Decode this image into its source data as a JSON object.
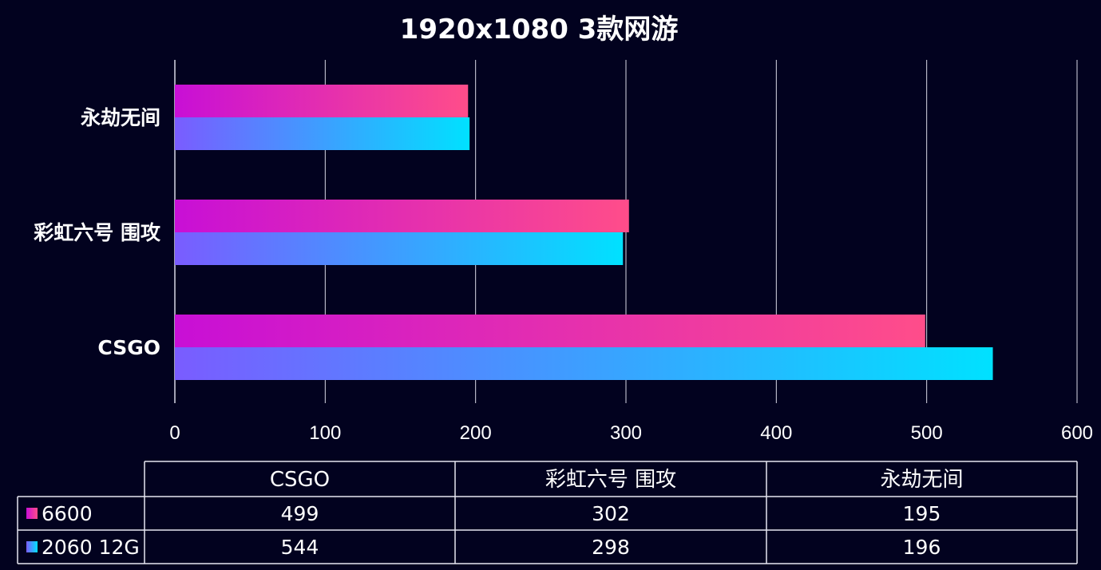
{
  "chart_data": {
    "type": "bar",
    "orientation": "horizontal",
    "title": "1920x1080  3款网游",
    "categories": [
      "CSGO",
      "彩虹六号 围攻",
      "永劫无间"
    ],
    "series": [
      {
        "name": "6600",
        "values": [
          499,
          302,
          195
        ]
      },
      {
        "name": "2060 12G",
        "values": [
          544,
          298,
          196
        ]
      }
    ],
    "xlim": [
      0,
      600
    ],
    "x_ticks": [
      0,
      100,
      200,
      300,
      400,
      500,
      600
    ],
    "grid": "vertical",
    "legend": "data-table-below"
  },
  "colors": {
    "background": "#02021f",
    "series_6600": [
      "#c80fd6",
      "#ff4d8a"
    ],
    "series_2060": [
      "#7a5cff",
      "#00e1ff"
    ],
    "grid": "#d8d8e6"
  }
}
